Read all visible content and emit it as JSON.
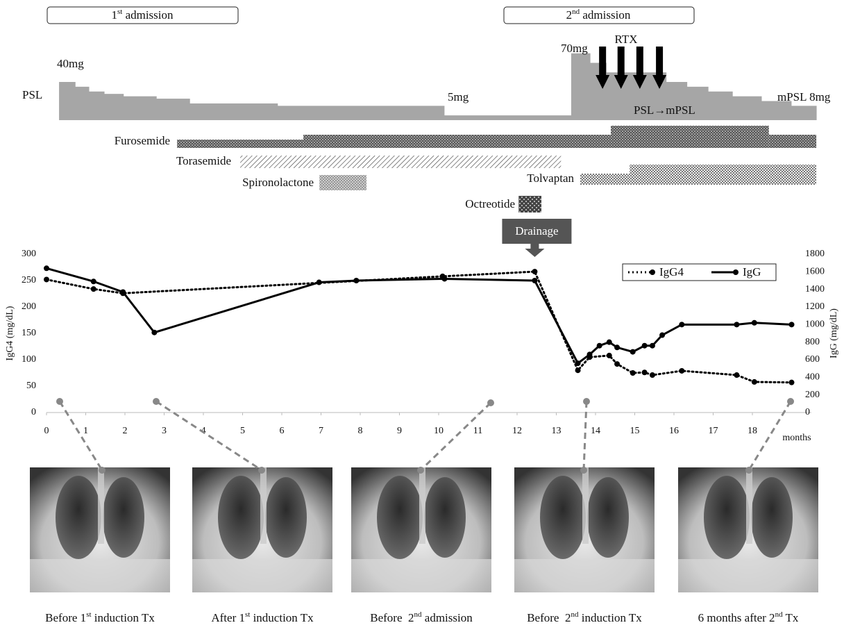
{
  "admissions": [
    {
      "number": "1",
      "suffix": "st",
      "text": " admission"
    },
    {
      "number": "2",
      "suffix": "nd",
      "text": " admission"
    }
  ],
  "chart_data": [
    {
      "type": "step",
      "label": "PSL",
      "color": "#a6a6a6",
      "ylim": [
        0,
        80
      ],
      "x_starts": [
        0.32,
        0.73,
        1.08,
        1.47,
        1.96,
        2.8,
        3.65,
        5.89,
        10.14,
        13.38,
        13.86,
        14.27,
        15.8,
        16.33,
        16.87,
        17.49,
        18.23,
        18.99
      ],
      "x_ends": [
        0.73,
        1.08,
        1.47,
        1.96,
        2.8,
        3.65,
        5.89,
        10.14,
        13.38,
        13.86,
        14.27,
        15.8,
        16.33,
        16.87,
        17.49,
        18.23,
        18.99,
        19.63
      ],
      "values": [
        40,
        35,
        30,
        27.5,
        25,
        22.5,
        17.5,
        15,
        5,
        70,
        60,
        50,
        40,
        35,
        30,
        25,
        20,
        15
      ],
      "annotations": [
        "40mg",
        "70mg",
        "5mg",
        "mPSL 8mg",
        "PSL→mPSL"
      ],
      "rtx": {
        "label": "RTX",
        "x": [
          14.18,
          14.65,
          15.13,
          15.63
        ]
      },
      "drainage": {
        "label": "Drainage",
        "x": 12.45
      },
      "drugs": [
        {
          "name": "Furosemide",
          "segments": [
            [
              3.33,
              6.55
            ],
            [
              6.55,
              14.39
            ],
            [
              14.39,
              18.42
            ],
            [
              18.42,
              19.63
            ]
          ]
        },
        {
          "name": "Torasemide",
          "segments": [
            [
              4.94,
              13.12
            ]
          ]
        },
        {
          "name": "Spironolactone",
          "segments": [
            [
              6.96,
              8.16
            ]
          ]
        },
        {
          "name": "Tolvaptan",
          "segments": [
            [
              13.61,
              14.87
            ],
            [
              14.87,
              19.63
            ]
          ]
        },
        {
          "name": "Octreotide",
          "segments": [
            [
              12.04,
              12.62
            ]
          ]
        }
      ]
    },
    {
      "type": "line",
      "xlim": [
        0,
        19.5
      ],
      "xticks": [
        0,
        1,
        2,
        3,
        4,
        5,
        6,
        7,
        8,
        9,
        10,
        11,
        12,
        13,
        14,
        15,
        16,
        17,
        18
      ],
      "x_unit": "months",
      "ylim": [
        0,
        300
      ],
      "yticks": [
        0,
        50,
        100,
        150,
        200,
        250,
        300
      ],
      "y2lim": [
        0,
        1800
      ],
      "y2ticks": [
        0,
        200,
        400,
        600,
        800,
        1000,
        1200,
        1400,
        1600,
        1800
      ],
      "ylabel": "IgG4 (mg/dL)",
      "y2label": "IgG (mg/dL)",
      "series": [
        {
          "name": "IgG4",
          "color": "#000000",
          "style": "dotted",
          "x": [
            0,
            1.2,
            1.95,
            10.1,
            12.45,
            13.55,
            13.85,
            14.35,
            14.55,
            14.95,
            15.25,
            15.45,
            16.2,
            17.6,
            18.05,
            19
          ],
          "values": [
            252,
            234,
            226,
            258,
            267,
            80,
            105,
            108,
            92,
            75,
            76,
            71,
            79,
            71,
            58,
            57
          ]
        },
        {
          "name": "IgG",
          "color": "#000000",
          "style": "solid",
          "axis": "y2",
          "x": [
            0,
            1.2,
            1.95,
            2.75,
            6.95,
            7.9,
            10.15,
            12.45,
            13.55,
            13.85,
            14.1,
            14.35,
            14.55,
            14.95,
            15.25,
            15.45,
            15.7,
            16.2,
            17.6,
            18.05,
            19
          ],
          "values": [
            1640,
            1490,
            1370,
            910,
            1480,
            1500,
            1520,
            1500,
            560,
            660,
            760,
            800,
            740,
            690,
            760,
            760,
            880,
            1000,
            1000,
            1020,
            1000
          ]
        }
      ]
    }
  ],
  "images": [
    {
      "caption": [
        "Before 1",
        "st",
        " induction Tx"
      ]
    },
    {
      "caption": [
        "After 1",
        "st",
        " induction Tx"
      ]
    },
    {
      "caption": [
        "Before  2",
        "nd",
        " admission"
      ]
    },
    {
      "caption": [
        "Before  2",
        "nd",
        " induction Tx"
      ]
    },
    {
      "caption": [
        "6 months after 2",
        "nd",
        " Tx"
      ]
    }
  ]
}
